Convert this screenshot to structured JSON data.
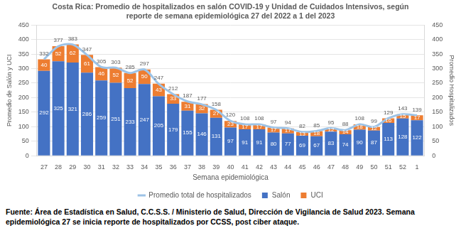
{
  "chart_data": {
    "type": "bar",
    "title": [
      "Costa Rica: Promedio de hospitalizados en salón COVID-19 y Unidad de Cuidados Intensivos, según",
      "reporte de semana epidemiológica 27 del 2022 a 1 del 2023"
    ],
    "x_label": "Semana epidemiológica",
    "y_label": "Promedio de Salón y UCI",
    "y2_label": "Promedio Hospitalizados",
    "categories": [
      "27",
      "28",
      "29",
      "30",
      "31",
      "32",
      "33",
      "34",
      "35",
      "36",
      "37",
      "38",
      "39",
      "40",
      "41",
      "42",
      "43",
      "44",
      "45",
      "46",
      "47",
      "48",
      "49",
      "50",
      "51",
      "52",
      "1"
    ],
    "series": [
      {
        "name": "Salón",
        "type": "bar",
        "color": "#4472c4",
        "values": [
          292,
          325,
          321,
          286,
          259,
          251,
          233,
          247,
          205,
          179,
          155,
          146,
          131,
          97,
          91,
          91,
          80,
          77,
          69,
          67,
          83,
          74,
          90,
          87,
          113,
          128,
          122
        ]
      },
      {
        "name": "UCI",
        "type": "bar",
        "color": "#ed7d31",
        "values": [
          40,
          52,
          62,
          61,
          46,
          52,
          52,
          50,
          43,
          33,
          31,
          32,
          27,
          23,
          17,
          17,
          17,
          17,
          13,
          18,
          12,
          14,
          18,
          12,
          16,
          15,
          17
        ]
      },
      {
        "name": "Promedio total de hospitalizados",
        "type": "line",
        "color": "#9dc3e6",
        "axis": "y2",
        "values": [
          332,
          377,
          383,
          347,
          305,
          303,
          285,
          297,
          247,
          212,
          187,
          177,
          158,
          120,
          108,
          108,
          97,
          94,
          82,
          85,
          95,
          88,
          108,
          99,
          129,
          143,
          139
        ]
      }
    ],
    "ylim": [
      0,
      450
    ],
    "yticks": [
      0,
      50,
      100,
      150,
      200,
      250,
      300,
      350,
      400,
      450
    ],
    "y2lim": [
      0,
      450
    ],
    "y2ticks": [
      0,
      50,
      100,
      150,
      200,
      250,
      300,
      350,
      400,
      450
    ],
    "stacked": true,
    "data_labels": true,
    "grid": true,
    "legend": "bottom"
  },
  "footnote": "Fuente: Área de Estadística en Salud, C.C.S.S. / Ministerio de Salud, Dirección de Vigilancia de Salud 2023. Semana epidemiológica 27 se inicia reporte de hospitalizados por CCSS, post ciber ataque."
}
